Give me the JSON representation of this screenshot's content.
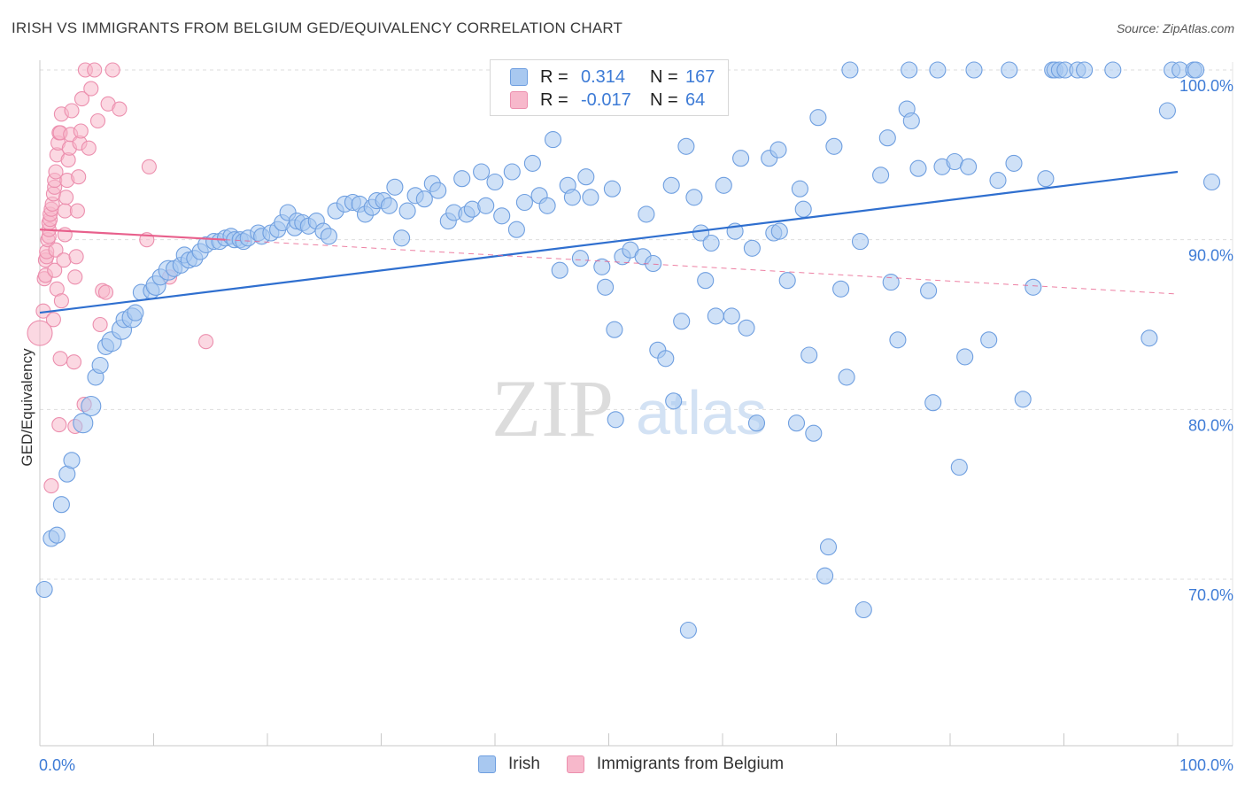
{
  "header": {
    "title": "IRISH VS IMMIGRANTS FROM BELGIUM GED/EQUIVALENCY CORRELATION CHART",
    "source": "Source: ZipAtlas.com"
  },
  "watermark": {
    "zip": "ZIP",
    "atlas": "atlas"
  },
  "legend_top": {
    "rows": [
      {
        "r_label": "R =",
        "r_value": "0.314",
        "n_label": "N =",
        "n_value": "167"
      },
      {
        "r_label": "R =",
        "r_value": "-0.017",
        "n_label": "N =",
        "n_value": "64"
      }
    ]
  },
  "legend_bottom": {
    "items": [
      {
        "label": "Irish"
      },
      {
        "label": "Immigrants from Belgium"
      }
    ]
  },
  "colors": {
    "blue_fill": "#a8c8f0",
    "blue_stroke": "#6f9fe0",
    "blue_line": "#2f6fcf",
    "pink_fill": "#f7b8cb",
    "pink_stroke": "#ec8fae",
    "pink_line": "#e8608c",
    "tick_text": "#3d7bd6"
  },
  "chart_data": {
    "type": "scatter",
    "title": "IRISH VS IMMIGRANTS FROM BELGIUM GED/EQUIVALENCY CORRELATION CHART",
    "xlabel": "",
    "ylabel": "GED/Equivalency",
    "xlim": [
      0,
      100
    ],
    "ylim": [
      60,
      102
    ],
    "x_tick_labels": [
      "0.0%",
      "100.0%"
    ],
    "y_ticks": [
      70,
      80,
      90,
      100
    ],
    "y_tick_labels": [
      "70.0%",
      "80.0%",
      "90.0%",
      "100.0%"
    ],
    "grid": true,
    "series": [
      {
        "name": "Irish",
        "color": "blue",
        "r": 0.314,
        "n": 167,
        "trend": {
          "x0": 0,
          "y0": 85.7,
          "x1": 100,
          "y1": 94.0
        },
        "points": [
          [
            0.4,
            69.4,
            9
          ],
          [
            1.0,
            72.4,
            9
          ],
          [
            1.5,
            72.6,
            9
          ],
          [
            1.9,
            74.4,
            9
          ],
          [
            2.4,
            76.2,
            9
          ],
          [
            2.8,
            77.0,
            9
          ],
          [
            3.8,
            79.2,
            11
          ],
          [
            4.5,
            80.2,
            11
          ],
          [
            4.9,
            81.9,
            9
          ],
          [
            5.3,
            82.6,
            9
          ],
          [
            5.8,
            83.7,
            9
          ],
          [
            6.3,
            84.0,
            11
          ],
          [
            7.2,
            84.7,
            11
          ],
          [
            7.4,
            85.3,
            9
          ],
          [
            8.1,
            85.4,
            11
          ],
          [
            8.4,
            85.7,
            9
          ],
          [
            8.9,
            86.9,
            9
          ],
          [
            9.8,
            87.0,
            9
          ],
          [
            10.2,
            87.3,
            11
          ],
          [
            10.6,
            87.8,
            9
          ],
          [
            11.3,
            88.2,
            11
          ],
          [
            11.8,
            88.3,
            9
          ],
          [
            12.4,
            88.5,
            9
          ],
          [
            12.7,
            89.1,
            9
          ],
          [
            13.1,
            88.8,
            9
          ],
          [
            13.6,
            88.9,
            9
          ],
          [
            14.1,
            89.3,
            9
          ],
          [
            14.6,
            89.7,
            9
          ],
          [
            15.3,
            89.9,
            9
          ],
          [
            15.8,
            89.9,
            9
          ],
          [
            16.3,
            90.1,
            9
          ],
          [
            16.8,
            90.2,
            9
          ],
          [
            17.1,
            90.0,
            9
          ],
          [
            17.6,
            90.0,
            9
          ],
          [
            17.9,
            89.9,
            9
          ],
          [
            18.3,
            90.1,
            9
          ],
          [
            19.2,
            90.4,
            9
          ],
          [
            19.5,
            90.2,
            9
          ],
          [
            20.3,
            90.4,
            9
          ],
          [
            20.9,
            90.6,
            9
          ],
          [
            21.3,
            91.0,
            9
          ],
          [
            21.8,
            91.6,
            9
          ],
          [
            22.4,
            90.7,
            9
          ],
          [
            22.6,
            91.1,
            9
          ],
          [
            23.1,
            91.0,
            9
          ],
          [
            23.6,
            90.8,
            9
          ],
          [
            24.3,
            91.1,
            9
          ],
          [
            24.9,
            90.5,
            9
          ],
          [
            25.4,
            90.2,
            9
          ],
          [
            26.0,
            91.7,
            9
          ],
          [
            26.8,
            92.1,
            9
          ],
          [
            27.5,
            92.2,
            9
          ],
          [
            28.1,
            92.1,
            9
          ],
          [
            28.6,
            91.5,
            9
          ],
          [
            29.2,
            91.9,
            9
          ],
          [
            29.6,
            92.3,
            9
          ],
          [
            30.2,
            92.3,
            9
          ],
          [
            30.7,
            92.0,
            9
          ],
          [
            31.2,
            93.1,
            9
          ],
          [
            31.8,
            90.1,
            9
          ],
          [
            32.3,
            91.7,
            9
          ],
          [
            33.0,
            92.6,
            9
          ],
          [
            33.8,
            92.4,
            9
          ],
          [
            34.5,
            93.3,
            9
          ],
          [
            35.0,
            92.9,
            9
          ],
          [
            35.9,
            91.1,
            9
          ],
          [
            36.4,
            91.6,
            9
          ],
          [
            37.1,
            93.6,
            9
          ],
          [
            37.5,
            91.5,
            9
          ],
          [
            38.0,
            91.8,
            9
          ],
          [
            38.8,
            94.0,
            9
          ],
          [
            39.2,
            92.0,
            9
          ],
          [
            40.0,
            93.4,
            9
          ],
          [
            40.6,
            91.4,
            9
          ],
          [
            41.5,
            94.0,
            9
          ],
          [
            41.9,
            90.6,
            9
          ],
          [
            42.6,
            92.2,
            9
          ],
          [
            43.3,
            94.5,
            9
          ],
          [
            43.9,
            92.6,
            9
          ],
          [
            44.6,
            92.0,
            9
          ],
          [
            45.1,
            95.9,
            9
          ],
          [
            45.7,
            88.2,
            9
          ],
          [
            46.4,
            93.2,
            9
          ],
          [
            46.8,
            92.5,
            9
          ],
          [
            47.5,
            88.9,
            9
          ],
          [
            48.0,
            93.7,
            9
          ],
          [
            48.4,
            92.5,
            9
          ],
          [
            49.4,
            88.4,
            9
          ],
          [
            49.7,
            87.2,
            9
          ],
          [
            50.3,
            93.0,
            9
          ],
          [
            50.5,
            84.7,
            9
          ],
          [
            50.6,
            79.4,
            9
          ],
          [
            51.2,
            89.0,
            9
          ],
          [
            51.9,
            89.4,
            9
          ],
          [
            53.0,
            89.0,
            9
          ],
          [
            53.3,
            91.5,
            9
          ],
          [
            53.9,
            88.6,
            9
          ],
          [
            54.3,
            83.5,
            9
          ],
          [
            55.0,
            83.0,
            9
          ],
          [
            55.5,
            93.2,
            9
          ],
          [
            56.4,
            85.2,
            9
          ],
          [
            56.8,
            95.5,
            9
          ],
          [
            57.0,
            67.0,
            9
          ],
          [
            57.5,
            92.5,
            9
          ],
          [
            58.1,
            90.4,
            9
          ],
          [
            58.5,
            87.6,
            9
          ],
          [
            59.0,
            89.8,
            9
          ],
          [
            59.4,
            85.5,
            9
          ],
          [
            60.1,
            93.2,
            9
          ],
          [
            60.8,
            85.5,
            9
          ],
          [
            61.1,
            90.5,
            9
          ],
          [
            61.6,
            94.8,
            9
          ],
          [
            62.1,
            84.8,
            9
          ],
          [
            62.6,
            89.5,
            9
          ],
          [
            63.0,
            79.2,
            9
          ],
          [
            64.1,
            94.8,
            9
          ],
          [
            64.5,
            90.4,
            9
          ],
          [
            64.9,
            95.3,
            9
          ],
          [
            65.0,
            90.5,
            9
          ],
          [
            65.7,
            87.6,
            9
          ],
          [
            66.5,
            79.2,
            9
          ],
          [
            66.8,
            93.0,
            9
          ],
          [
            67.1,
            91.8,
            9
          ],
          [
            67.6,
            83.2,
            9
          ],
          [
            68.0,
            78.6,
            9
          ],
          [
            68.4,
            97.2,
            9
          ],
          [
            69.0,
            70.2,
            9
          ],
          [
            69.3,
            71.9,
            9
          ],
          [
            69.8,
            95.5,
            9
          ],
          [
            70.4,
            87.1,
            9
          ],
          [
            70.9,
            81.9,
            9
          ],
          [
            71.2,
            100.0,
            9
          ],
          [
            72.1,
            89.9,
            9
          ],
          [
            72.4,
            68.2,
            9
          ],
          [
            73.9,
            93.8,
            9
          ],
          [
            74.5,
            96.0,
            9
          ],
          [
            74.8,
            87.5,
            9
          ],
          [
            75.4,
            84.1,
            9
          ],
          [
            76.2,
            97.7,
            9
          ],
          [
            76.4,
            100.0,
            9
          ],
          [
            76.6,
            97.0,
            9
          ],
          [
            77.2,
            94.2,
            9
          ],
          [
            78.1,
            87.0,
            9
          ],
          [
            78.5,
            80.4,
            9
          ],
          [
            78.9,
            100.0,
            9
          ],
          [
            79.3,
            94.3,
            9
          ],
          [
            80.4,
            94.6,
            9
          ],
          [
            80.8,
            76.6,
            9
          ],
          [
            81.3,
            83.1,
            9
          ],
          [
            81.6,
            94.3,
            9
          ],
          [
            82.1,
            100.0,
            9
          ],
          [
            83.4,
            84.1,
            9
          ],
          [
            84.2,
            93.5,
            9
          ],
          [
            85.2,
            100.0,
            9
          ],
          [
            85.6,
            94.5,
            9
          ],
          [
            86.4,
            80.6,
            9
          ],
          [
            87.3,
            87.2,
            9
          ],
          [
            88.4,
            93.6,
            9
          ],
          [
            89.0,
            100.0,
            9
          ],
          [
            89.2,
            100.0,
            9
          ],
          [
            89.6,
            100.0,
            9
          ],
          [
            90.1,
            100.0,
            9
          ],
          [
            91.2,
            100.0,
            9
          ],
          [
            91.8,
            100.0,
            9
          ],
          [
            94.3,
            100.0,
            9
          ],
          [
            97.5,
            84.2,
            9
          ],
          [
            99.1,
            97.6,
            9
          ],
          [
            99.5,
            100.0,
            9
          ],
          [
            100.2,
            100.0,
            9
          ],
          [
            101.4,
            100.0,
            9
          ],
          [
            101.6,
            100.0,
            9
          ],
          [
            103.0,
            93.4,
            9
          ],
          [
            55.7,
            80.5,
            9
          ]
        ]
      },
      {
        "name": "Immigrants from Belgium",
        "color": "pink",
        "r": -0.017,
        "n": 64,
        "trend": {
          "x0": 0,
          "y0": 90.6,
          "x1": 16.3,
          "y1": 90.0,
          "ext_x1": 100,
          "ext_y1": 86.8
        },
        "points": [
          [
            0.0,
            84.5,
            14
          ],
          [
            0.3,
            85.8,
            8
          ],
          [
            0.4,
            87.7,
            8
          ],
          [
            0.5,
            87.9,
            8
          ],
          [
            0.5,
            88.8,
            8
          ],
          [
            0.6,
            89.0,
            8
          ],
          [
            0.6,
            89.3,
            8
          ],
          [
            0.7,
            90.0,
            8
          ],
          [
            0.8,
            90.2,
            8
          ],
          [
            0.8,
            90.6,
            8
          ],
          [
            0.8,
            91.0,
            8
          ],
          [
            0.9,
            91.2,
            8
          ],
          [
            0.9,
            91.5,
            8
          ],
          [
            1.0,
            91.8,
            8
          ],
          [
            1.1,
            92.1,
            8
          ],
          [
            1.2,
            92.7,
            8
          ],
          [
            1.3,
            93.1,
            8
          ],
          [
            1.3,
            93.5,
            8
          ],
          [
            1.4,
            94.0,
            8
          ],
          [
            1.5,
            95.0,
            8
          ],
          [
            1.6,
            95.7,
            8
          ],
          [
            1.7,
            96.3,
            8
          ],
          [
            1.8,
            96.3,
            8
          ],
          [
            1.9,
            97.4,
            8
          ],
          [
            1.0,
            75.5,
            8
          ],
          [
            1.2,
            85.3,
            8
          ],
          [
            1.3,
            88.2,
            8
          ],
          [
            1.4,
            89.4,
            8
          ],
          [
            1.5,
            87.1,
            8
          ],
          [
            1.7,
            79.1,
            8
          ],
          [
            1.8,
            83.0,
            8
          ],
          [
            1.9,
            86.4,
            8
          ],
          [
            2.1,
            88.8,
            8
          ],
          [
            2.2,
            90.3,
            8
          ],
          [
            2.2,
            91.7,
            8
          ],
          [
            2.3,
            92.5,
            8
          ],
          [
            2.4,
            93.5,
            8
          ],
          [
            2.5,
            94.7,
            8
          ],
          [
            2.6,
            95.4,
            8
          ],
          [
            2.7,
            96.2,
            8
          ],
          [
            2.8,
            97.6,
            8
          ],
          [
            3.0,
            82.8,
            8
          ],
          [
            3.1,
            87.8,
            8
          ],
          [
            3.2,
            89.0,
            8
          ],
          [
            3.3,
            91.7,
            8
          ],
          [
            3.4,
            93.7,
            8
          ],
          [
            3.5,
            95.7,
            8
          ],
          [
            3.6,
            96.4,
            8
          ],
          [
            3.7,
            98.3,
            8
          ],
          [
            3.9,
            80.3,
            8
          ],
          [
            4.0,
            100.0,
            8
          ],
          [
            4.3,
            95.4,
            8
          ],
          [
            4.5,
            98.9,
            8
          ],
          [
            4.8,
            100.0,
            8
          ],
          [
            5.1,
            97.0,
            8
          ],
          [
            5.3,
            85.0,
            8
          ],
          [
            5.5,
            87.0,
            8
          ],
          [
            5.8,
            86.9,
            8
          ],
          [
            6.0,
            98.0,
            8
          ],
          [
            6.4,
            100.0,
            8
          ],
          [
            7.0,
            97.7,
            8
          ],
          [
            9.4,
            90.0,
            8
          ],
          [
            9.6,
            94.3,
            8
          ],
          [
            11.4,
            87.8,
            8
          ],
          [
            14.6,
            84.0,
            8
          ],
          [
            3.1,
            79.0,
            8
          ]
        ]
      }
    ]
  }
}
